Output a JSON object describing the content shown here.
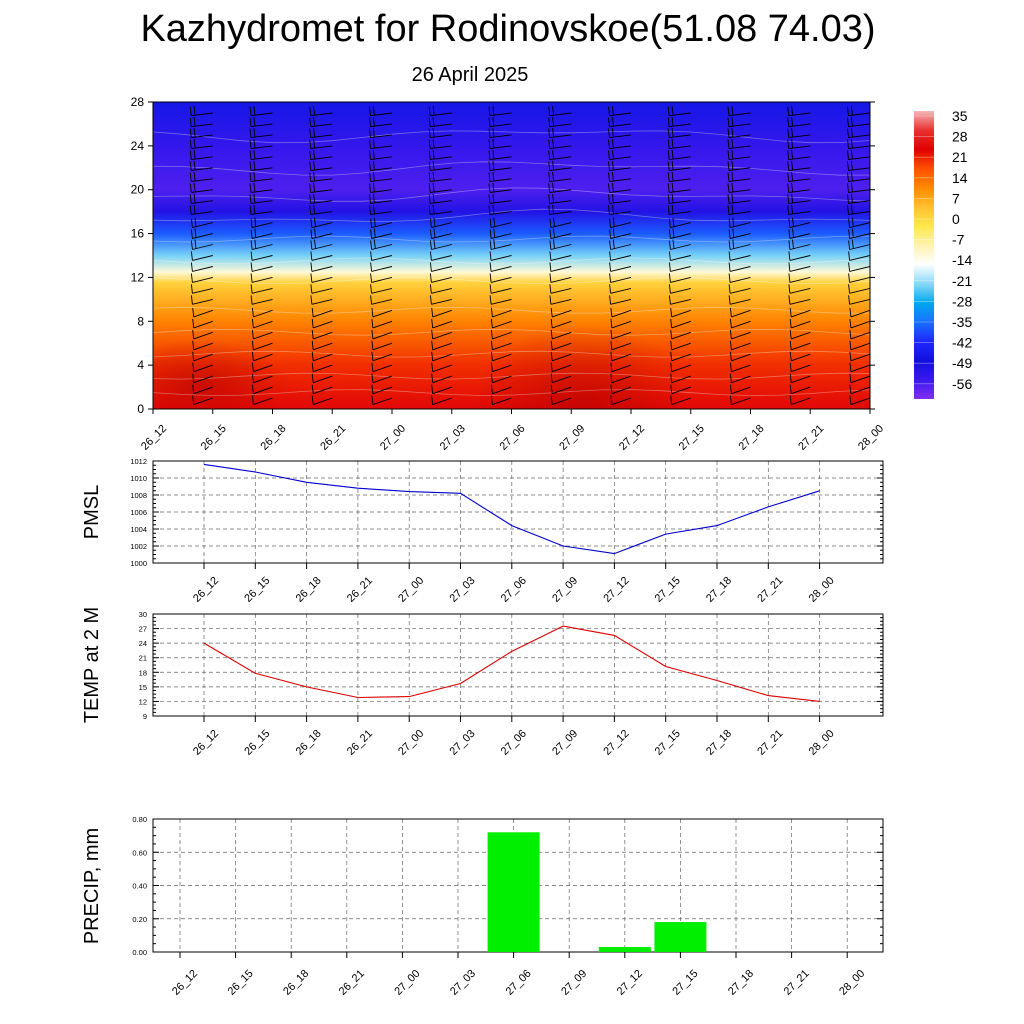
{
  "header": {
    "title": "Kazhydromet for Rodinovskoe(51.08 74.03)",
    "subtitle": "26 April 2025"
  },
  "time_labels": [
    "26_12",
    "26_15",
    "26_18",
    "26_21",
    "27_00",
    "27_03",
    "27_06",
    "27_09",
    "27_12",
    "27_15",
    "27_18",
    "27_21",
    "28_00"
  ],
  "chart_data": [
    {
      "type": "heatmap",
      "id": "cross-section",
      "title": "",
      "ylim": [
        0,
        28
      ],
      "y_ticks": [
        0,
        4,
        8,
        12,
        16,
        20,
        24,
        28
      ],
      "x": [
        "26_12",
        "26_15",
        "26_18",
        "26_21",
        "27_00",
        "27_03",
        "27_06",
        "27_09",
        "27_12",
        "27_15",
        "27_18",
        "27_21",
        "28_00"
      ],
      "colorbar": {
        "labels": [
          "35",
          "28",
          "21",
          "14",
          "7",
          "0",
          "-7",
          "-14",
          "-21",
          "-28",
          "-35",
          "-42",
          "-49",
          "-56"
        ],
        "colors": {
          "top": "#f4b6b6",
          "red": "#e00000",
          "orange": "#ff8a00",
          "yellow": "#ffe84a",
          "cream": "#fff2b0",
          "white": "#ffffff",
          "lightblue": "#88d8f8",
          "cyan": "#00a8ee",
          "blue": "#1f28ff",
          "navy": "#1010dd",
          "purple": "#8030f0"
        }
      },
      "temperature_profile": [
        {
          "height": 0,
          "temp": 22
        },
        {
          "height": 4,
          "temp": 17
        },
        {
          "height": 8,
          "temp": 8
        },
        {
          "height": 11.5,
          "temp": -3
        },
        {
          "height": 12.5,
          "temp": -12
        },
        {
          "height": 14,
          "temp": -22
        },
        {
          "height": 16,
          "temp": -37
        },
        {
          "height": 18,
          "temp": -52
        },
        {
          "height": 20,
          "temp": -58
        },
        {
          "height": 24,
          "temp": -55
        },
        {
          "height": 28,
          "temp": -47
        }
      ],
      "wind_barbs": true
    },
    {
      "type": "line",
      "id": "pmsl",
      "ylabel": "PMSL",
      "x": [
        "26_12",
        "26_15",
        "26_18",
        "26_21",
        "27_00",
        "27_03",
        "27_06",
        "27_09",
        "27_12",
        "27_15",
        "27_18",
        "27_21",
        "28_00"
      ],
      "values": [
        1011.6,
        1010.7,
        1009.5,
        1008.8,
        1008.4,
        1008.2,
        1004.4,
        1002.0,
        1001.1,
        1003.4,
        1004.4,
        1006.6,
        1008.5
      ],
      "ylim": [
        1000,
        1012
      ],
      "y_ticks": [
        1000,
        1002,
        1004,
        1006,
        1008,
        1010,
        1012
      ],
      "color": "#0000cc",
      "grid": true
    },
    {
      "type": "line",
      "id": "temp2m",
      "ylabel": "TEMP at 2 M",
      "x": [
        "26_12",
        "26_15",
        "26_18",
        "26_21",
        "27_00",
        "27_03",
        "27_06",
        "27_09",
        "27_12",
        "27_15",
        "27_18",
        "27_21",
        "28_00"
      ],
      "values": [
        24.0,
        17.8,
        15.0,
        12.8,
        13.0,
        15.7,
        22.3,
        27.5,
        25.6,
        19.2,
        16.3,
        13.2,
        12.0
      ],
      "ylim": [
        9,
        30
      ],
      "y_ticks": [
        9,
        12,
        15,
        18,
        21,
        24,
        27,
        30
      ],
      "color": "#dd0000",
      "grid": true
    },
    {
      "type": "bar",
      "id": "precip",
      "ylabel": "PRECIP, mm",
      "categories": [
        "26_12",
        "26_15",
        "26_18",
        "26_21",
        "27_00",
        "27_03",
        "27_06",
        "27_09",
        "27_12",
        "27_15",
        "27_18",
        "27_21",
        "28_00"
      ],
      "values": [
        0,
        0,
        0,
        0,
        0,
        0,
        0.72,
        0,
        0.03,
        0.18,
        0,
        0,
        0
      ],
      "ylim": [
        0,
        0.8
      ],
      "y_ticks": [
        "0.00",
        "0.20",
        "0.40",
        "0.60",
        "0.80"
      ],
      "color": "#00ee00",
      "grid": true
    }
  ]
}
